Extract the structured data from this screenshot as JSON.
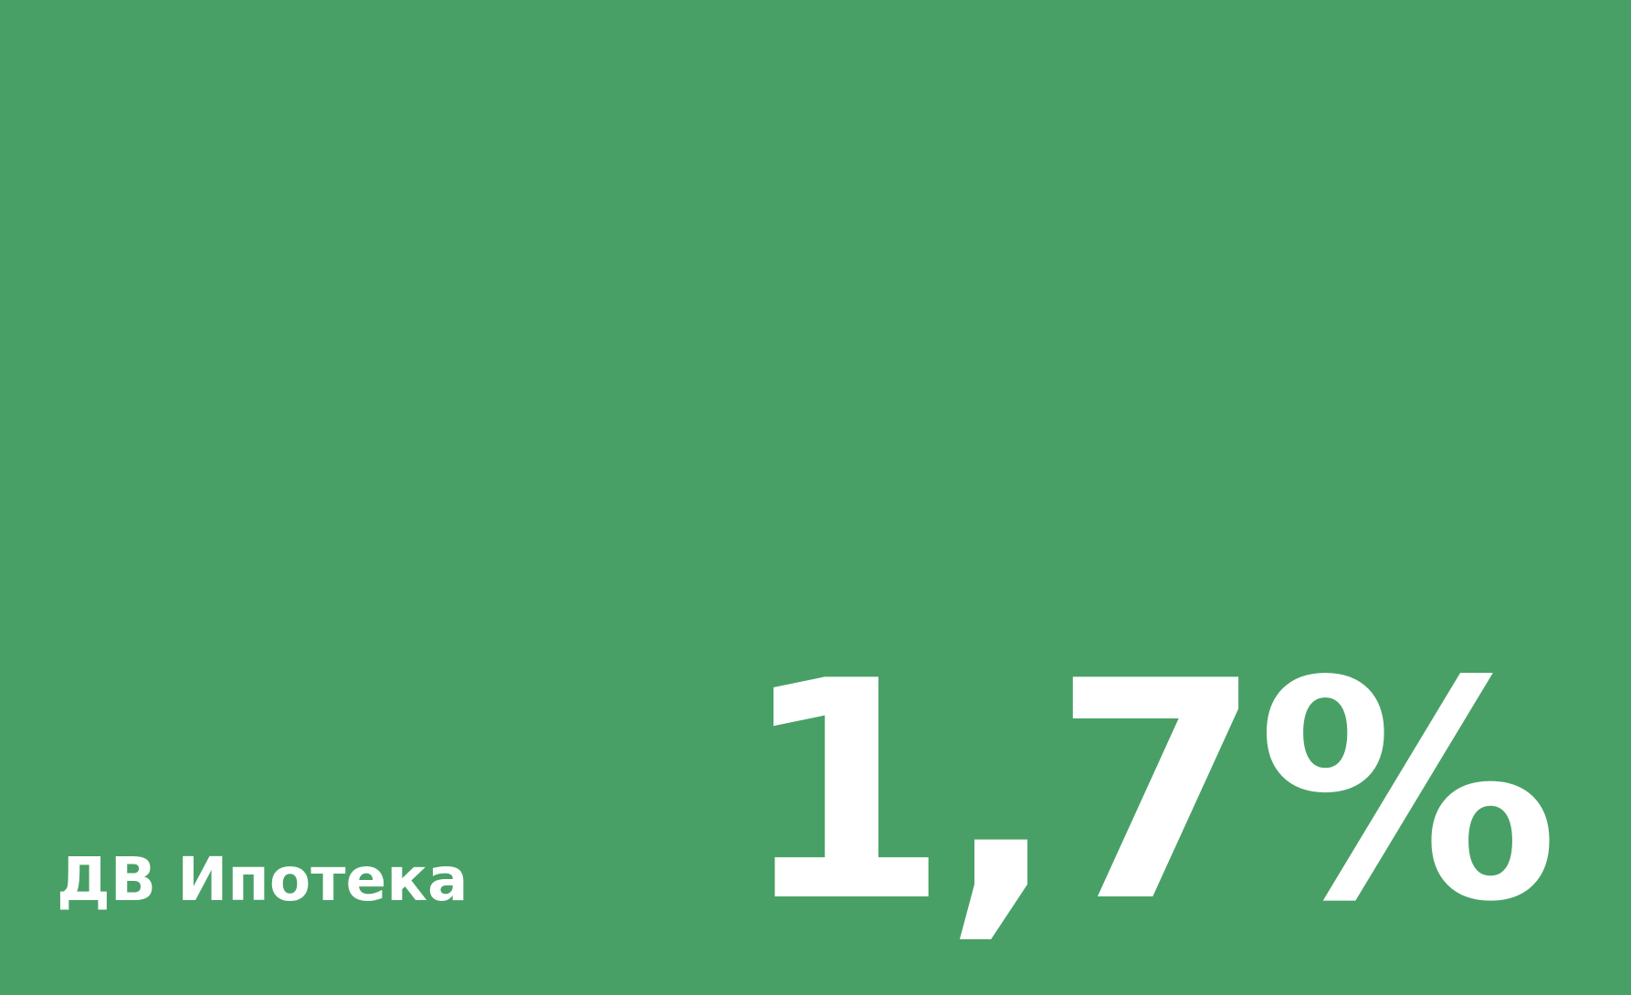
{
  "card": {
    "label": "ДВ Ипотека",
    "rate": "1,7%"
  },
  "colors": {
    "background": "#48A066",
    "text": "#FFFFFF"
  }
}
